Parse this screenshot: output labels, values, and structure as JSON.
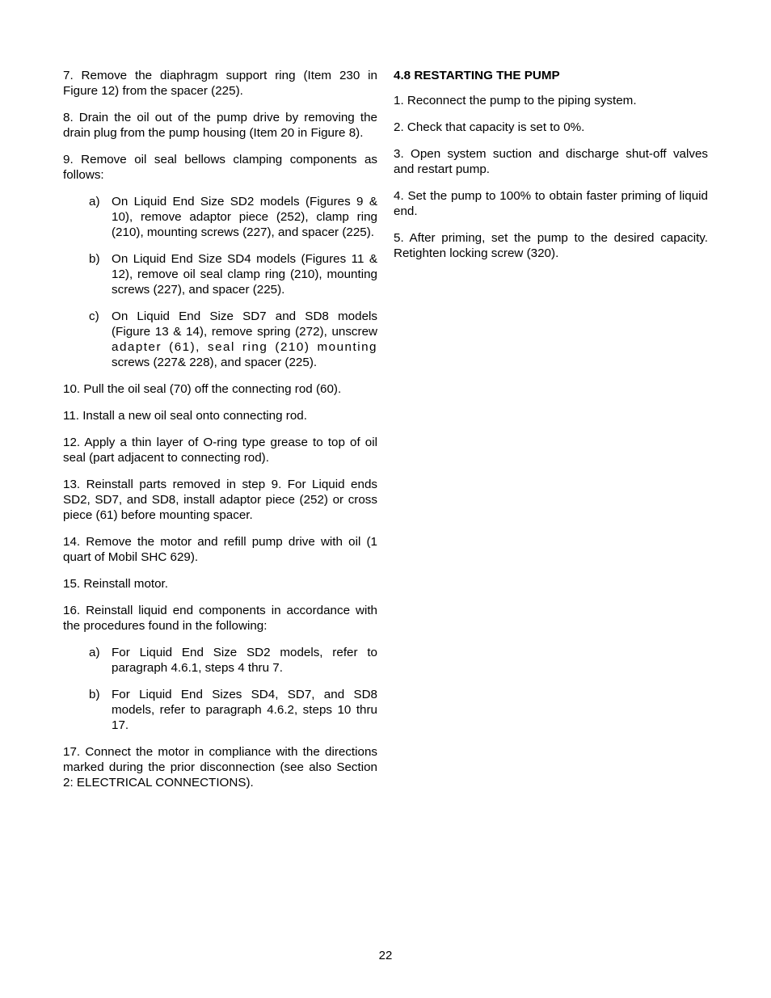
{
  "pageNumber": "22",
  "left": {
    "p7": "7. Remove the diaphragm support ring (Item 230 in Figure 12) from the spacer (225).",
    "p8": "8. Drain the oil out of the pump drive by removing the drain plug from the pump housing (Item 20 in Figure 8).",
    "p9": "9. Remove oil seal bellows clamping components as follows:",
    "p9aLetter": "a)",
    "p9a": "On Liquid End Size SD2 models (Figures 9 & 10), remove adaptor piece (252), clamp ring (210), mounting screws (227), and spacer (225).",
    "p9bLetter": "b)",
    "p9b": "On Liquid End Size SD4 models (Figures 11 & 12), remove oil seal clamp ring (210), mounting screws (227), and spacer (225).",
    "p9cLetter": "c)",
    "p9c1": "On Liquid End Size SD7 and SD8 models (Figure 13 & 14), remove spring (272), unscrew ",
    "p9c2": "adapter (61), seal ring (210) mounting ",
    "p9c3": "screws (227& 228), and spacer (225).",
    "p10": "10. Pull the oil seal (70) off the connecting rod (60).",
    "p11": "11. Install a new oil seal onto connecting rod.",
    "p12": "12. Apply a thin layer of O-ring type grease to top of oil seal (part adjacent to connecting rod).",
    "p13": "13. Reinstall parts removed in step 9. For Liquid ends SD2, SD7, and SD8, install adaptor piece (252) or cross piece (61) before mounting spacer.",
    "p14": "14. Remove the motor and refill pump drive with oil (1 quart of Mobil SHC 629).",
    "p15": "15. Reinstall motor.",
    "p16": "16. Reinstall liquid end components in accordance with the procedures found in the following:",
    "p16aLetter": "a)",
    "p16a": "For Liquid End Size SD2 models, refer to paragraph 4.6.1, steps 4 thru 7.",
    "p16bLetter": "b)",
    "p16b": "For Liquid End Sizes SD4, SD7, and SD8 models, refer to paragraph 4.6.2, steps 10 thru 17.",
    "p17": "17. Connect the motor in compliance with the directions marked during the prior disconnection (see also Section 2: ELECTRICAL CONNECTIONS)."
  },
  "right": {
    "heading": "4.8 RESTARTING THE PUMP",
    "r1": "1. Reconnect the pump to the piping system.",
    "r2": "2. Check that capacity is set to 0%.",
    "r3": "3. Open system suction and discharge shut-off valves and restart pump.",
    "r4": "4. Set the pump to 100% to obtain faster priming of liquid end.",
    "r5": "5. After priming, set the pump to the desired capacity. Retighten locking screw (320)."
  }
}
